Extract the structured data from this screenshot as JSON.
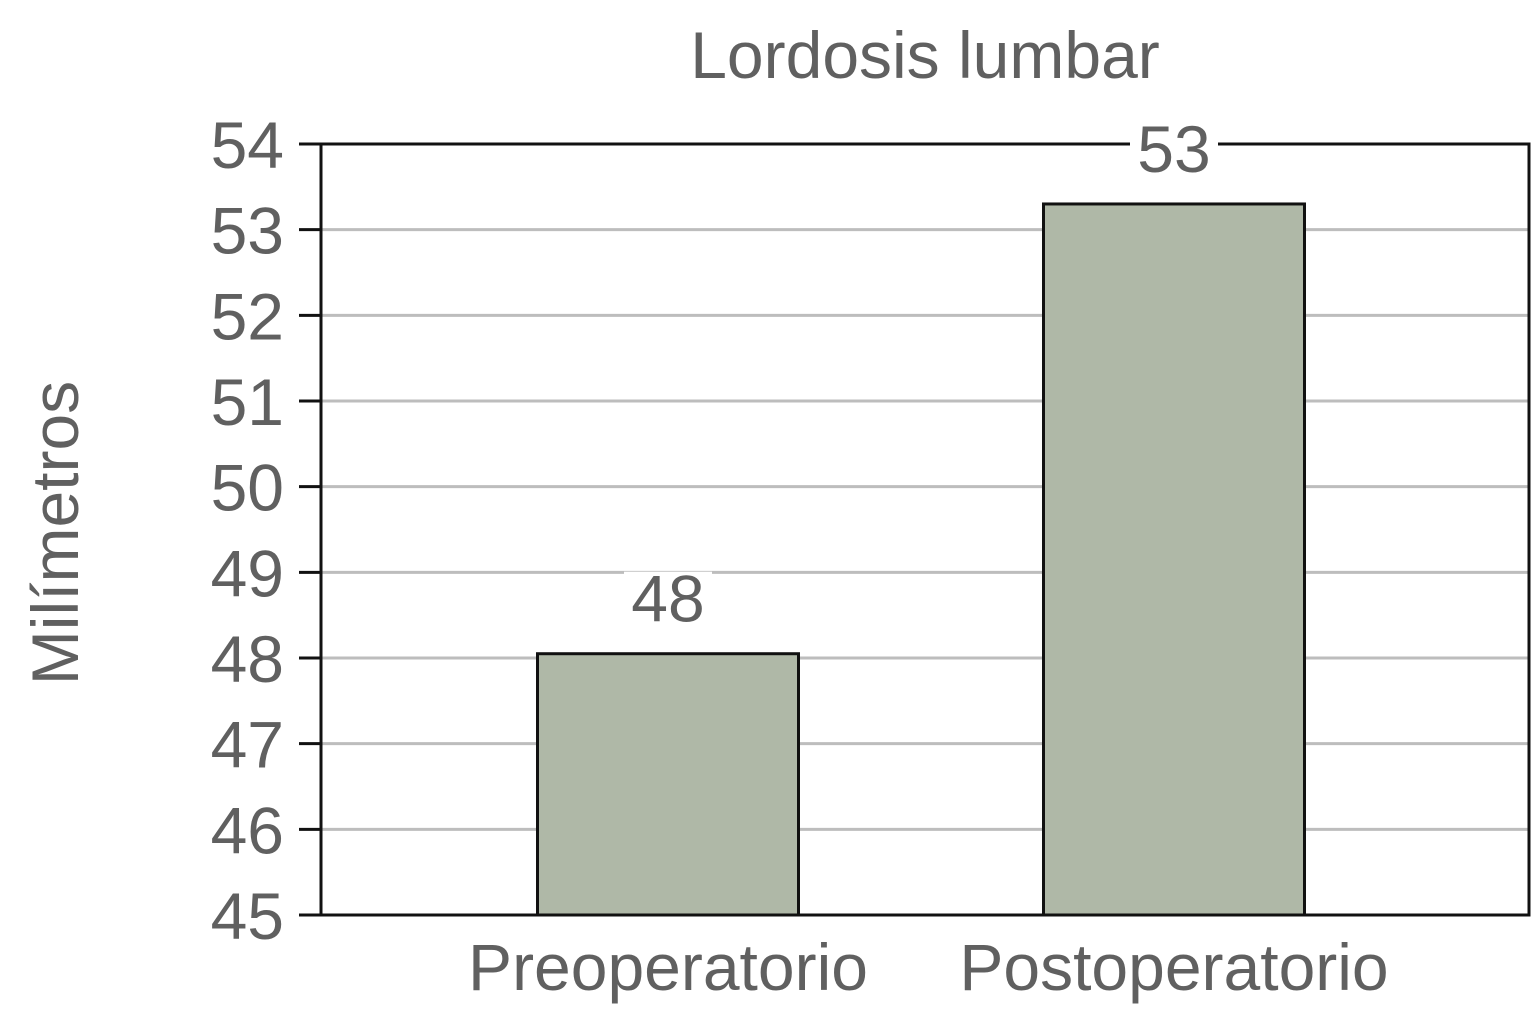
{
  "chart_data": {
    "type": "bar",
    "title": "Lordosis lumbar",
    "xlabel": "",
    "ylabel": "Milímetros",
    "categories": [
      "Preoperatorio",
      "Postoperatorio"
    ],
    "values": [
      48.05,
      53.3
    ],
    "data_labels": [
      "48",
      "53"
    ],
    "ylim": [
      45,
      54
    ],
    "yticks": [
      "45",
      "46",
      "47",
      "48",
      "49",
      "50",
      "51",
      "52",
      "53",
      "54"
    ],
    "grid": true,
    "legend": "none"
  },
  "colors": {
    "bar_fill": "#afb8a7",
    "bar_stroke": "#111111",
    "grid": "#bdbdbd",
    "axis": "#111111",
    "text": "#606060"
  }
}
